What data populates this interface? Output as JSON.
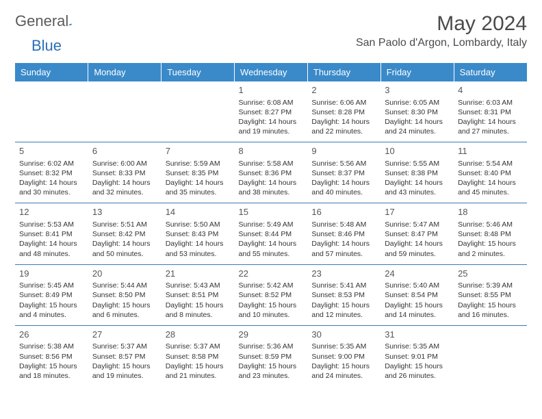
{
  "brand": {
    "g": "General",
    "b": "Blue"
  },
  "title": "May 2024",
  "location": "San Paolo d'Argon, Lombardy, Italy",
  "colors": {
    "header_bg": "#3a8ac9",
    "border": "#3a7ab0",
    "text": "#333",
    "title": "#4a4a4a"
  },
  "weekdays": [
    "Sunday",
    "Monday",
    "Tuesday",
    "Wednesday",
    "Thursday",
    "Friday",
    "Saturday"
  ],
  "grid": [
    [
      null,
      null,
      null,
      {
        "n": "1",
        "r": "6:08 AM",
        "s": "8:27 PM",
        "d": "14 hours and 19 minutes."
      },
      {
        "n": "2",
        "r": "6:06 AM",
        "s": "8:28 PM",
        "d": "14 hours and 22 minutes."
      },
      {
        "n": "3",
        "r": "6:05 AM",
        "s": "8:30 PM",
        "d": "14 hours and 24 minutes."
      },
      {
        "n": "4",
        "r": "6:03 AM",
        "s": "8:31 PM",
        "d": "14 hours and 27 minutes."
      }
    ],
    [
      {
        "n": "5",
        "r": "6:02 AM",
        "s": "8:32 PM",
        "d": "14 hours and 30 minutes."
      },
      {
        "n": "6",
        "r": "6:00 AM",
        "s": "8:33 PM",
        "d": "14 hours and 32 minutes."
      },
      {
        "n": "7",
        "r": "5:59 AM",
        "s": "8:35 PM",
        "d": "14 hours and 35 minutes."
      },
      {
        "n": "8",
        "r": "5:58 AM",
        "s": "8:36 PM",
        "d": "14 hours and 38 minutes."
      },
      {
        "n": "9",
        "r": "5:56 AM",
        "s": "8:37 PM",
        "d": "14 hours and 40 minutes."
      },
      {
        "n": "10",
        "r": "5:55 AM",
        "s": "8:38 PM",
        "d": "14 hours and 43 minutes."
      },
      {
        "n": "11",
        "r": "5:54 AM",
        "s": "8:40 PM",
        "d": "14 hours and 45 minutes."
      }
    ],
    [
      {
        "n": "12",
        "r": "5:53 AM",
        "s": "8:41 PM",
        "d": "14 hours and 48 minutes."
      },
      {
        "n": "13",
        "r": "5:51 AM",
        "s": "8:42 PM",
        "d": "14 hours and 50 minutes."
      },
      {
        "n": "14",
        "r": "5:50 AM",
        "s": "8:43 PM",
        "d": "14 hours and 53 minutes."
      },
      {
        "n": "15",
        "r": "5:49 AM",
        "s": "8:44 PM",
        "d": "14 hours and 55 minutes."
      },
      {
        "n": "16",
        "r": "5:48 AM",
        "s": "8:46 PM",
        "d": "14 hours and 57 minutes."
      },
      {
        "n": "17",
        "r": "5:47 AM",
        "s": "8:47 PM",
        "d": "14 hours and 59 minutes."
      },
      {
        "n": "18",
        "r": "5:46 AM",
        "s": "8:48 PM",
        "d": "15 hours and 2 minutes."
      }
    ],
    [
      {
        "n": "19",
        "r": "5:45 AM",
        "s": "8:49 PM",
        "d": "15 hours and 4 minutes."
      },
      {
        "n": "20",
        "r": "5:44 AM",
        "s": "8:50 PM",
        "d": "15 hours and 6 minutes."
      },
      {
        "n": "21",
        "r": "5:43 AM",
        "s": "8:51 PM",
        "d": "15 hours and 8 minutes."
      },
      {
        "n": "22",
        "r": "5:42 AM",
        "s": "8:52 PM",
        "d": "15 hours and 10 minutes."
      },
      {
        "n": "23",
        "r": "5:41 AM",
        "s": "8:53 PM",
        "d": "15 hours and 12 minutes."
      },
      {
        "n": "24",
        "r": "5:40 AM",
        "s": "8:54 PM",
        "d": "15 hours and 14 minutes."
      },
      {
        "n": "25",
        "r": "5:39 AM",
        "s": "8:55 PM",
        "d": "15 hours and 16 minutes."
      }
    ],
    [
      {
        "n": "26",
        "r": "5:38 AM",
        "s": "8:56 PM",
        "d": "15 hours and 18 minutes."
      },
      {
        "n": "27",
        "r": "5:37 AM",
        "s": "8:57 PM",
        "d": "15 hours and 19 minutes."
      },
      {
        "n": "28",
        "r": "5:37 AM",
        "s": "8:58 PM",
        "d": "15 hours and 21 minutes."
      },
      {
        "n": "29",
        "r": "5:36 AM",
        "s": "8:59 PM",
        "d": "15 hours and 23 minutes."
      },
      {
        "n": "30",
        "r": "5:35 AM",
        "s": "9:00 PM",
        "d": "15 hours and 24 minutes."
      },
      {
        "n": "31",
        "r": "5:35 AM",
        "s": "9:01 PM",
        "d": "15 hours and 26 minutes."
      },
      null
    ]
  ]
}
